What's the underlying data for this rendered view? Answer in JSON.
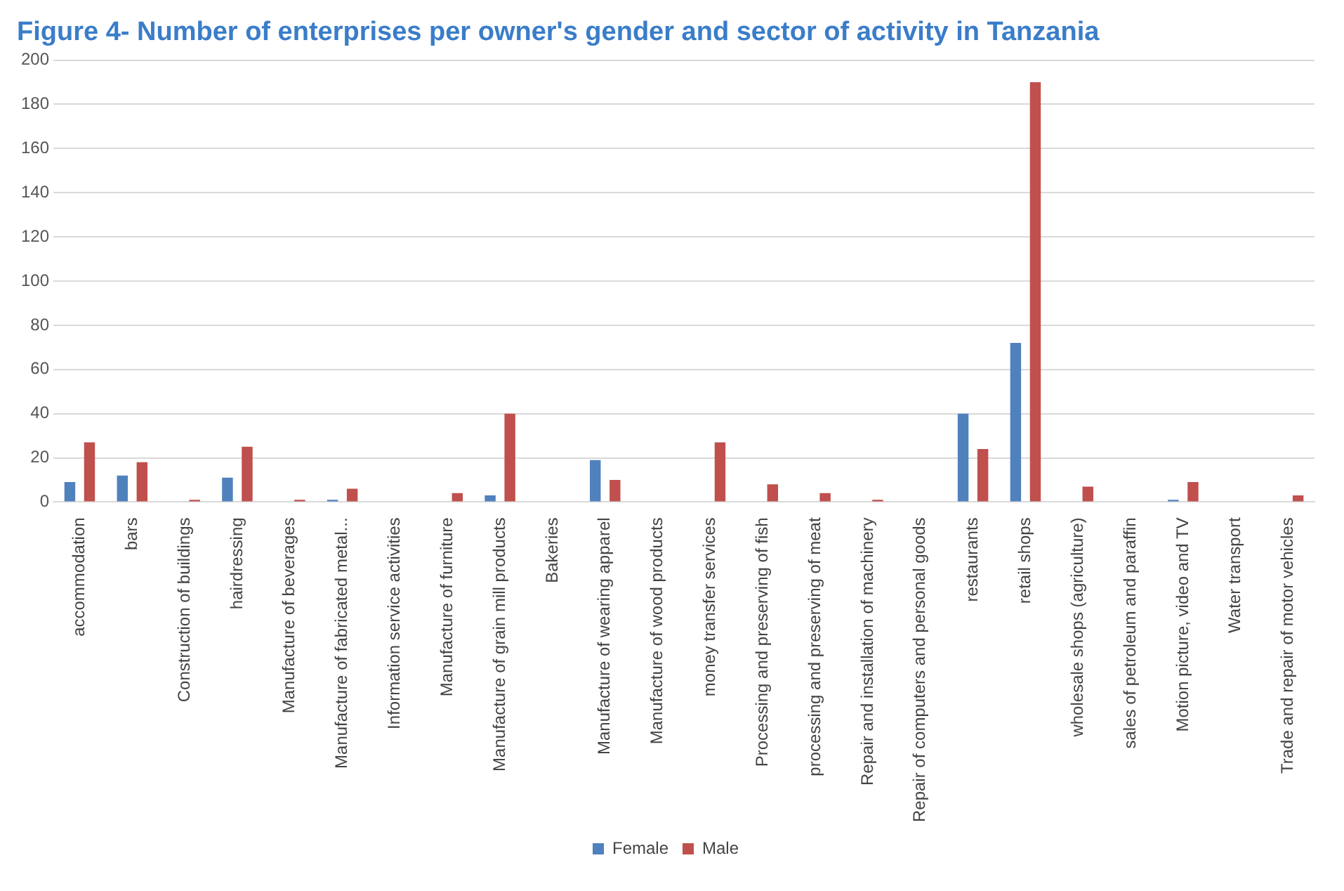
{
  "chart_data": {
    "type": "bar",
    "title": "Figure 4- Number of enterprises per owner's gender and sector of activity in Tanzania",
    "categories": [
      "accommodation",
      "bars",
      "Construction of buildings",
      "hairdressing",
      "Manufacture of beverages",
      "Manufacture of fabricated metal...",
      "Information service activities",
      "Manufacture of furniture",
      "Manufacture of grain mill products",
      "Bakeries",
      "Manufacture of wearing apparel",
      "Manufacture of wood products",
      "money transfer services",
      "Processing and preserving of fish",
      "processing and preserving of meat",
      "Repair and installation of machinery",
      "Repair of computers and personal goods",
      "restaurants",
      "retail shops",
      "wholesale shops (agriculture)",
      "sales of petroleum and paraffin",
      "Motion picture, video and TV",
      "Water transport",
      "Trade and repair of motor vehicles"
    ],
    "series": [
      {
        "name": "Female",
        "color": "#4f81bd",
        "values": [
          9,
          12,
          0,
          11,
          0,
          1,
          0,
          0,
          3,
          0,
          19,
          0,
          0,
          0,
          0,
          0,
          0,
          40,
          72,
          0,
          0,
          1,
          0,
          0
        ]
      },
      {
        "name": "Male",
        "color": "#c0504d",
        "values": [
          27,
          18,
          1,
          25,
          1,
          6,
          0,
          4,
          40,
          0,
          10,
          0,
          27,
          8,
          4,
          1,
          0,
          24,
          190,
          7,
          0,
          9,
          0,
          3
        ]
      }
    ],
    "ylim": [
      0,
      200
    ],
    "yticks": [
      0,
      20,
      40,
      60,
      80,
      100,
      120,
      140,
      160,
      180,
      200
    ],
    "grid": "y",
    "legend": "bottom"
  }
}
